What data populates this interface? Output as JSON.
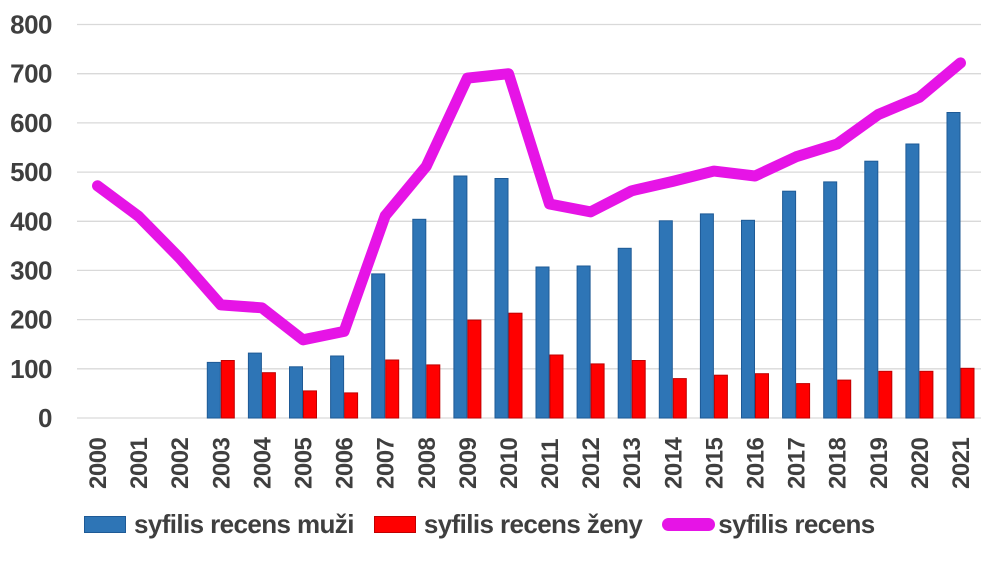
{
  "chart_data": {
    "type": "bar",
    "subtype": "grouped-bars-with-line-overlay",
    "categories": [
      "2000",
      "2001",
      "2002",
      "2003",
      "2004",
      "2005",
      "2006",
      "2007",
      "2008",
      "2009",
      "2010",
      "2011",
      "2012",
      "2013",
      "2014",
      "2015",
      "2016",
      "2017",
      "2018",
      "2019",
      "2020",
      "2021"
    ],
    "series": [
      {
        "name": "syfilis recens muži",
        "type": "bar",
        "color": "#2E75B6",
        "border_color": "#1E5A96",
        "values": [
          null,
          null,
          null,
          113,
          132,
          104,
          126,
          293,
          404,
          492,
          487,
          307,
          309,
          345,
          401,
          415,
          402,
          461,
          480,
          522,
          557,
          621
        ]
      },
      {
        "name": "syfilis recens ženy",
        "type": "bar",
        "color": "#FF0000",
        "border_color": "#C00000",
        "values": [
          null,
          null,
          null,
          117,
          92,
          55,
          51,
          118,
          108,
          199,
          213,
          128,
          110,
          117,
          80,
          87,
          90,
          70,
          77,
          95,
          95,
          101
        ]
      },
      {
        "name": "syfilis recens",
        "type": "line",
        "color": "#E614E6",
        "values": [
          472,
          410,
          325,
          230,
          224,
          159,
          176,
          411,
          512,
          691,
          700,
          435,
          419,
          462,
          481,
          502,
          492,
          531,
          557,
          617,
          652,
          722
        ]
      }
    ],
    "title": "",
    "xlabel": "",
    "ylabel": "",
    "ylim": [
      0,
      800
    ],
    "yticks": [
      0,
      100,
      200,
      300,
      400,
      500,
      600,
      700,
      800
    ],
    "grid": true,
    "grid_color": "#D9D9D9",
    "tick_label_color": "#3F3F3F",
    "legend_position": "bottom"
  },
  "legend": {
    "items": [
      {
        "label": "syfilis recens muži",
        "color": "#2E75B6",
        "border_color": "#1E5A96",
        "marker": "box"
      },
      {
        "label": "syfilis recens ženy",
        "color": "#FF0000",
        "border_color": "#C00000",
        "marker": "box"
      },
      {
        "label": "syfilis recens",
        "color": "#E614E6",
        "marker": "line"
      }
    ]
  }
}
